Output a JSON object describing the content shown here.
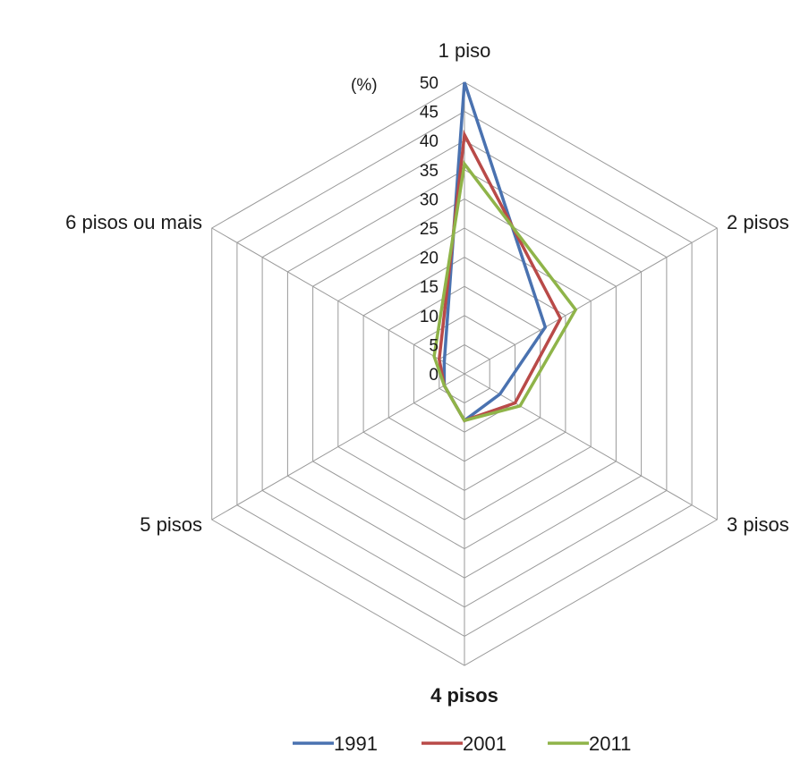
{
  "chart_data": {
    "type": "radar",
    "unit_label": "(%)",
    "categories": [
      "1 piso",
      "2 pisos",
      "3 pisos",
      "4 pisos",
      "5 pisos",
      "6 pisos ou mais"
    ],
    "ticks": [
      "0",
      "5",
      "10",
      "15",
      "20",
      "25",
      "30",
      "35",
      "40",
      "45",
      "50"
    ],
    "rmax": 50,
    "series": [
      {
        "name": "1991",
        "color": "#4a72b0",
        "values": [
          50,
          16,
          7,
          8,
          4,
          4
        ]
      },
      {
        "name": "2001",
        "color": "#b94a48",
        "values": [
          41,
          19,
          10,
          8,
          4,
          5
        ]
      },
      {
        "name": "2011",
        "color": "#8fb449",
        "values": [
          36,
          22,
          11,
          8,
          4,
          6
        ]
      }
    ],
    "legend_position": "bottom",
    "bold_category": "4 pisos"
  }
}
